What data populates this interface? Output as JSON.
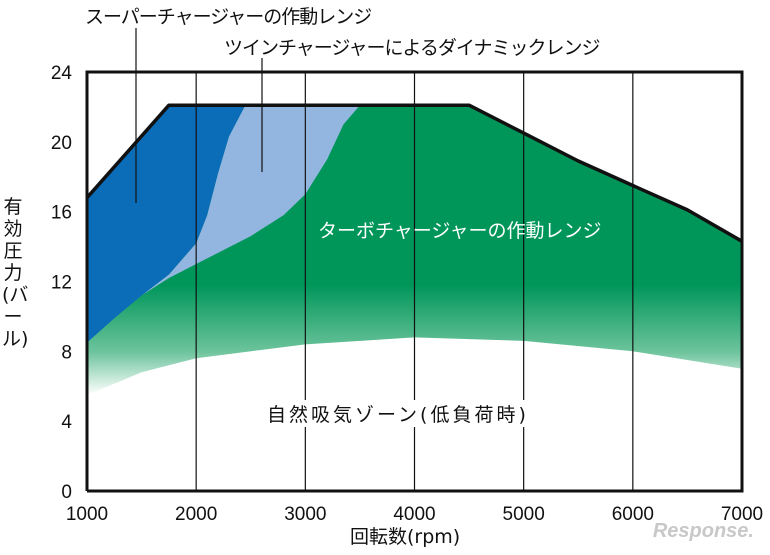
{
  "chart_data": {
    "type": "area",
    "xlabel": "回転数(rpm)",
    "ylabel": "有効圧力(バール)",
    "xlim": [
      1000,
      7000
    ],
    "ylim": [
      0,
      24
    ],
    "x_ticks": [
      "1000",
      "2000",
      "3000",
      "4000",
      "5000",
      "6000",
      "7000"
    ],
    "y_ticks": [
      "0",
      "4",
      "8",
      "12",
      "16",
      "20",
      "24"
    ],
    "grid": "vertical",
    "envelope": [
      [
        1000,
        16.8
      ],
      [
        1750,
        22.1
      ],
      [
        4500,
        22.1
      ],
      [
        5000,
        20.5
      ],
      [
        5500,
        18.9
      ],
      [
        6000,
        17.5
      ],
      [
        6500,
        16.1
      ],
      [
        7000,
        14.3
      ]
    ],
    "regions": [
      {
        "name": "スーパーチャージャーの作動レンジ",
        "color": "#0b6cb8",
        "boundary": [
          [
            1000,
            8.5
          ],
          [
            1250,
            9.9
          ],
          [
            1500,
            11.2
          ],
          [
            1750,
            12.4
          ],
          [
            2000,
            14.2
          ],
          [
            2100,
            15.8
          ],
          [
            2200,
            18.2
          ],
          [
            2300,
            20.3
          ],
          [
            2450,
            22.1
          ]
        ]
      },
      {
        "name": "ツインチャージャーによるダイナミックレンジ",
        "color": "#93b6e0",
        "boundary": [
          [
            1500,
            11.2
          ],
          [
            1750,
            12.2
          ],
          [
            2000,
            13
          ],
          [
            2500,
            14.6
          ],
          [
            2800,
            15.8
          ],
          [
            3000,
            17
          ],
          [
            3200,
            19
          ],
          [
            3350,
            21
          ],
          [
            3500,
            22.1
          ]
        ]
      },
      {
        "name": "ターボチャージャーの作動レンジ",
        "color": "#00965a",
        "fade_boundary": [
          [
            1000,
            5.5
          ],
          [
            1500,
            6.8
          ],
          [
            2000,
            7.6
          ],
          [
            3000,
            8.4
          ],
          [
            4000,
            8.8
          ],
          [
            5000,
            8.6
          ],
          [
            6000,
            8
          ],
          [
            7000,
            7
          ]
        ]
      }
    ],
    "annotations": [
      "スーパーチャージャーの作動レンジ",
      "ツインチャージャーによるダイナミックレンジ",
      "ターボチャージャーの作動レンジ",
      "自然吸気ゾーン(低負荷時)"
    ]
  },
  "watermark": "Response."
}
